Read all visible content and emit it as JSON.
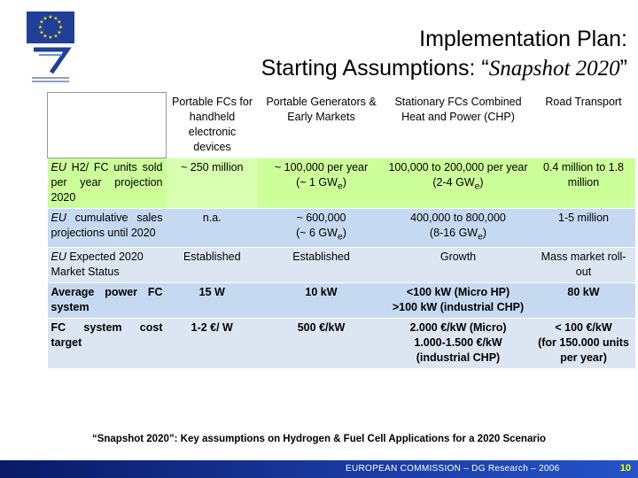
{
  "logos": {
    "eu_flag": "eu-flag",
    "fp7_caption": "SEVENTH FRAMEWORK PROGRAMME"
  },
  "title": {
    "line1": "Implementation Plan:",
    "line2_prefix": "Starting Assumptions: “",
    "line2_italic": "Snapshot 2020",
    "line2_suffix": "”"
  },
  "table": {
    "headers": [
      "",
      "Portable FCs for handheld electronic devices",
      "Portable Generators & Early Markets",
      "Stationary FCs Combined Heat and Power (CHP)",
      "Road Transport"
    ],
    "rows": [
      {
        "label_italic": "EU",
        "label_rest": " H2/ FC units sold per year projection 2020",
        "cells": [
          "~ 250 million",
          "~ 100,000 per year",
          "100,000 to 200,000 per year",
          "0.4 million to 1.8 million"
        ],
        "cells_line2": [
          "",
          "(~ 1 GW",
          "(2-4 GW",
          ""
        ],
        "sub": "e",
        "close": ")"
      },
      {
        "label_italic": "EU",
        "label_rest": " cumulative sales projections until 2020",
        "cells": [
          "n.a.",
          "~ 600,000",
          "400,000 to 800,000",
          "1-5 million"
        ],
        "cells_line2": [
          "",
          "(~ 6 GW",
          "(8-16 GW",
          ""
        ],
        "sub": "e",
        "close": ")"
      },
      {
        "label_italic": "EU",
        "label_rest": " Expected 2020 Market Status",
        "cells": [
          "Established",
          "Established",
          "Growth",
          "Mass market roll-out"
        ]
      },
      {
        "label": "Average power FC system",
        "cells": [
          "15 W",
          "10 kW",
          "<100 kW (Micro HP)",
          "80 kW"
        ],
        "cells_line2": [
          "",
          "",
          ">100 kW (industrial CHP)",
          ""
        ]
      },
      {
        "label": "FC system cost target",
        "cells": [
          "1-2 €/ W",
          "500 €/kW",
          "2.000 €/kW (Micro)",
          "< 100 €/kW"
        ],
        "cells_line2": [
          "",
          "",
          "1.000-1.500 €/kW (industrial CHP)",
          "(for 150.000 units per year)"
        ]
      }
    ]
  },
  "footnote": "“Snapshot 2020”: Key assumptions on Hydrogen & Fuel Cell Applications for a 2020 Scenario",
  "footer": {
    "credit": "EUROPEAN COMMISSION – DG Research – 2006",
    "page": "10"
  },
  "colors": {
    "green_row": "#ccff99",
    "blue_row": "#c5d9f1",
    "light_blue_row": "#dce6f2",
    "footer_bar": "#1a3aa0",
    "page_number": "#ffff00"
  }
}
